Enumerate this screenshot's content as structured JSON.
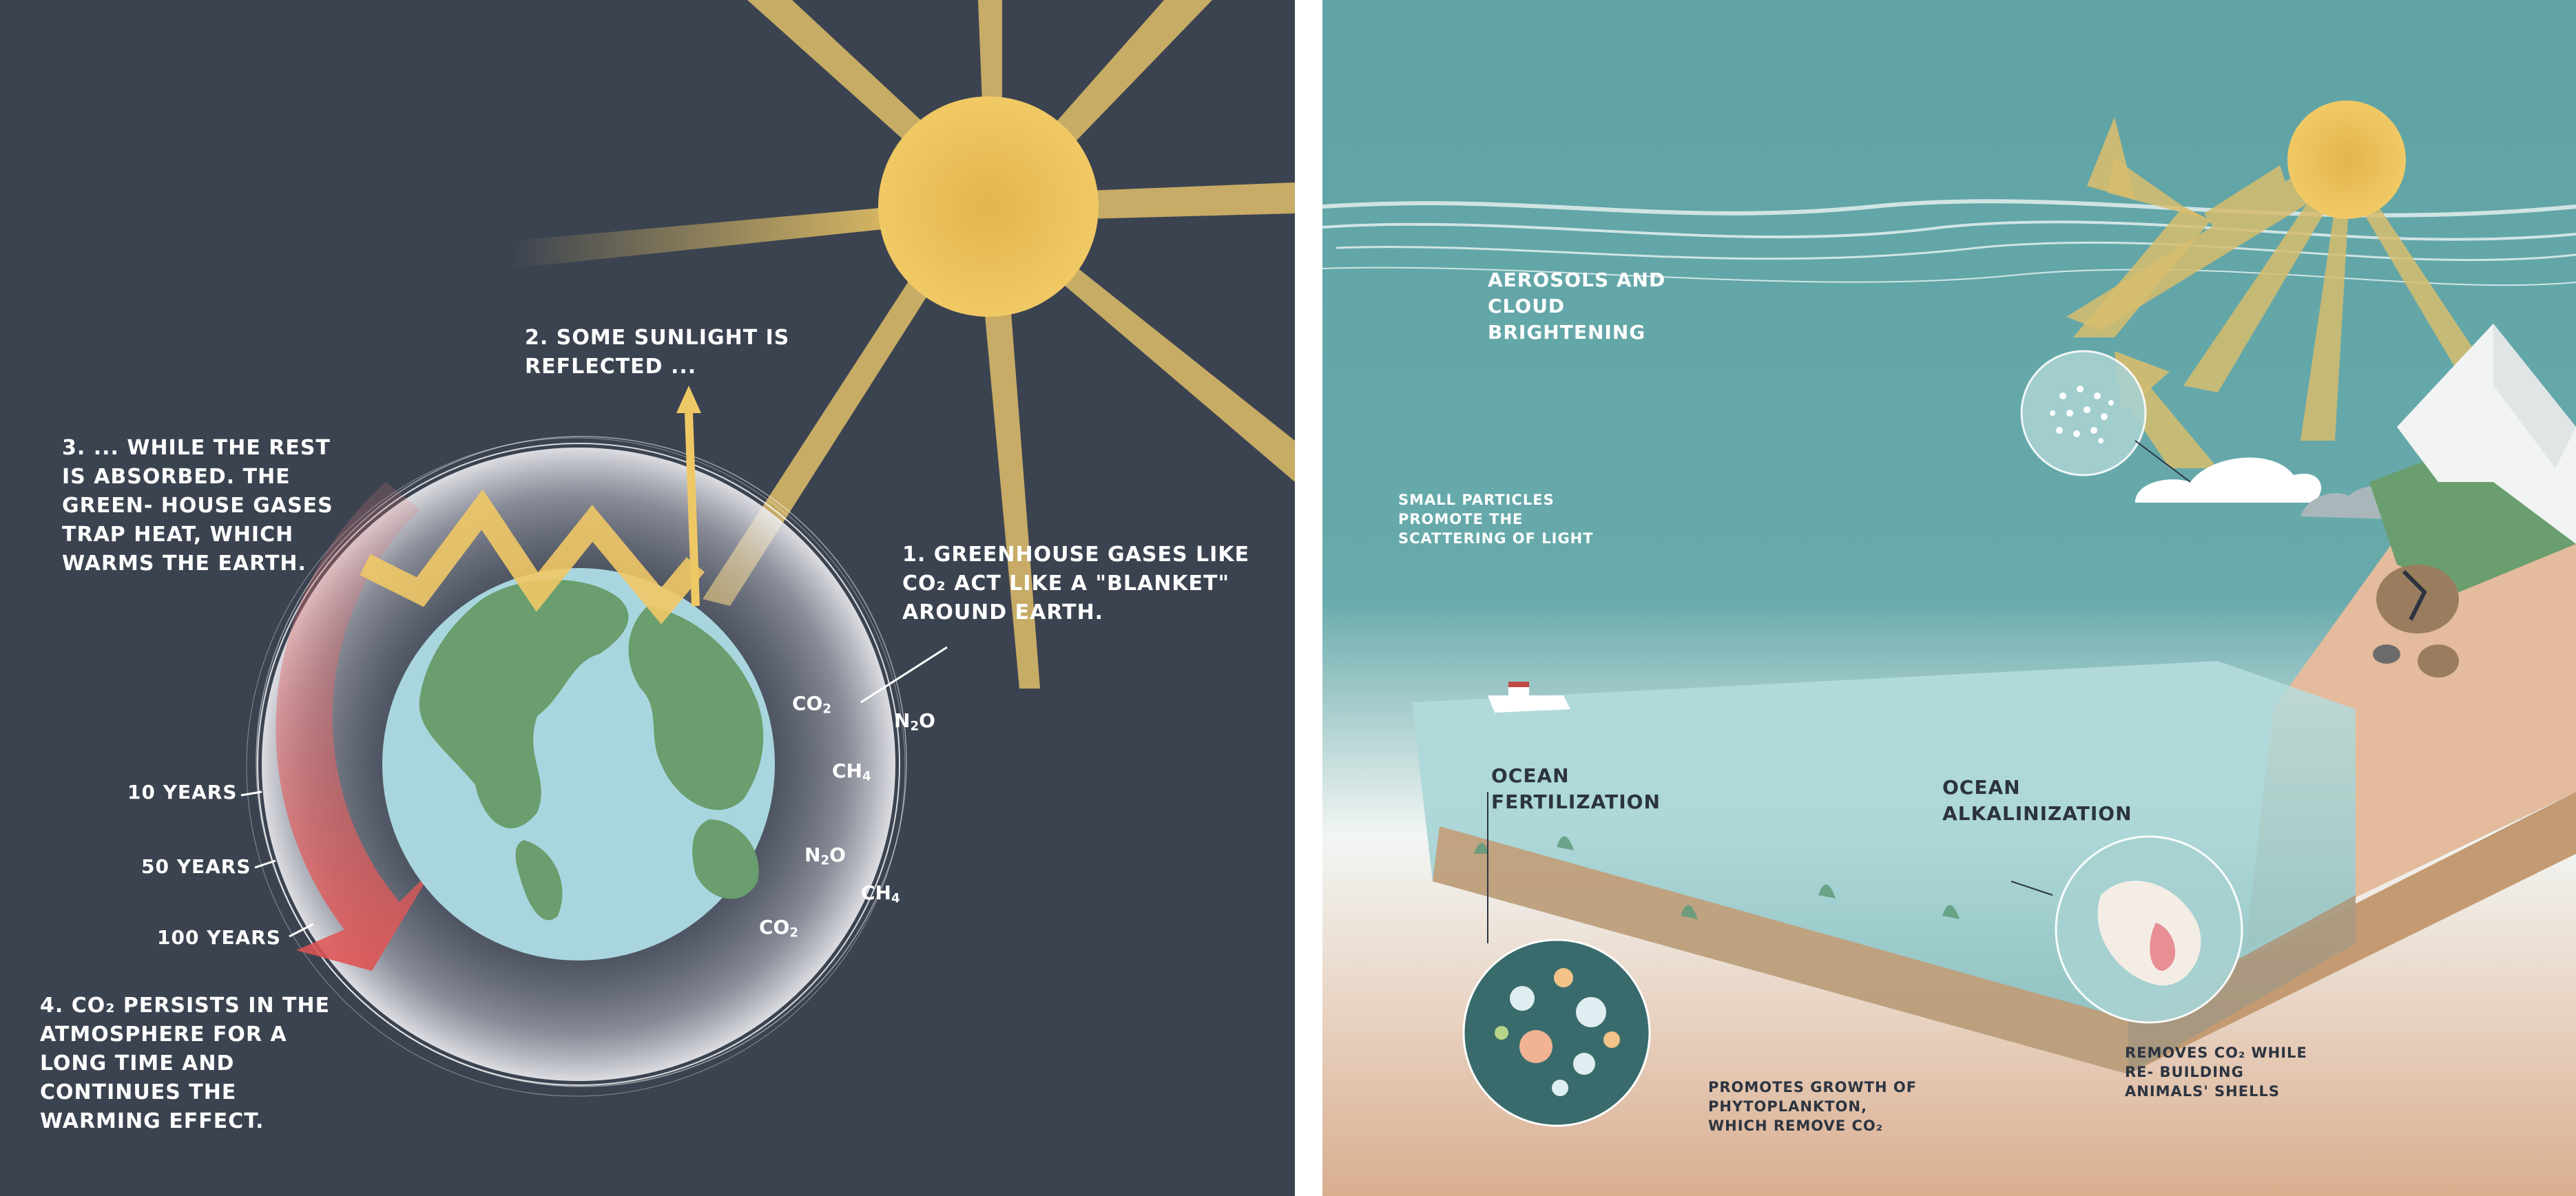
{
  "left_panel": {
    "colors": {
      "background": "#3b4350",
      "sun": "#efc866",
      "globe_ocean": "#a9d6de",
      "globe_land": "#6a9e6e",
      "arrow_red": "#e05a5a"
    },
    "labels": {
      "blanket": "1. Greenhouse gases like CO₂ act like a \"blanket\" around Earth.",
      "reflected": "2. Some sunlight is reflected ...",
      "absorbed": "3. ... while the rest is absorbed. The green- house gases trap heat, which warms the Earth.",
      "persists": "4. CO₂ persists in the atmosphere for a long time and continues the warming effect."
    },
    "time_labels": [
      "10 years",
      "50 years",
      "100 years"
    ],
    "gases": [
      {
        "formula": "CO",
        "sub": "2"
      },
      {
        "formula": "N",
        "sub": "2",
        "tail": "O"
      },
      {
        "formula": "CH",
        "sub": "4"
      },
      {
        "formula": "N",
        "sub": "2",
        "tail": "O"
      },
      {
        "formula": "CH",
        "sub": "4"
      },
      {
        "formula": "CO",
        "sub": "2"
      }
    ]
  },
  "right_panel": {
    "colors": {
      "sky": "#5fa3a5",
      "sun": "#efc866",
      "ground": "#c49a72",
      "mountain_snow": "#f2f4f3",
      "grass": "#6a9e6e",
      "water": "#a9d6da"
    },
    "labels": {
      "aerosols": "Aerosols and cloud brightening",
      "particles": "Small particles promote the scattering of light",
      "fertilization": "Ocean fertilization",
      "alkalinization": "Ocean alkalinization",
      "phytoplankton": "Promotes growth of phytoplankton, which remove CO₂",
      "shells": "Removes CO₂ while re- building animals' shells"
    }
  }
}
